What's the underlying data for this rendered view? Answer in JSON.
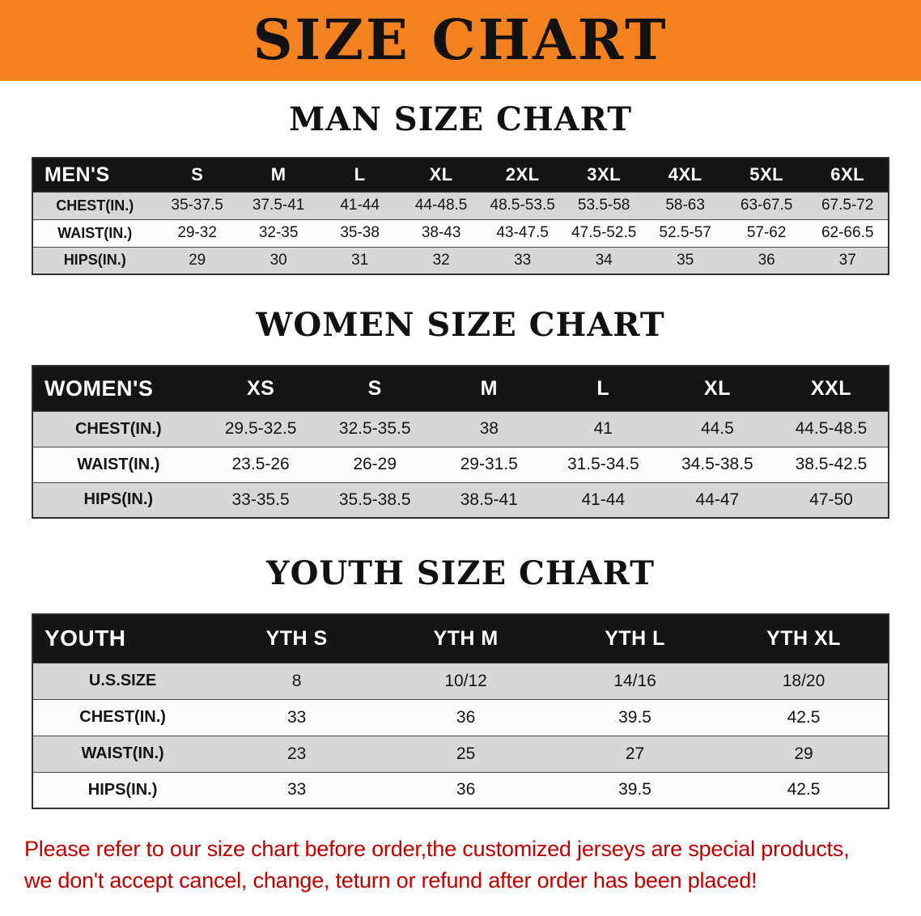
{
  "banner": {
    "title": "SIZE CHART",
    "bg_color": "#F58220",
    "text_color": "#121212"
  },
  "colors": {
    "table_header_bg": "#151515",
    "table_header_text": "#ffffff",
    "row_stripe_gray": "#d7d7d7",
    "row_stripe_white": "#fcfcfc",
    "notice_red": "#C00000"
  },
  "sections": [
    {
      "heading": "MAN SIZE CHART",
      "table": {
        "header": [
          "MEN'S",
          "S",
          "M",
          "L",
          "XL",
          "2XL",
          "3XL",
          "4XL",
          "5XL",
          "6XL"
        ],
        "rows": [
          [
            "CHEST(IN.)",
            "35-37.5",
            "37.5-41",
            "41-44",
            "44-48.5",
            "48.5-53.5",
            "53.5-58",
            "58-63",
            "63-67.5",
            "67.5-72"
          ],
          [
            "WAIST(IN.)",
            "29-32",
            "32-35",
            "35-38",
            "38-43",
            "43-47.5",
            "47.5-52.5",
            "52.5-57",
            "57-62",
            "62-66.5"
          ],
          [
            "HIPS(IN.)",
            "29",
            "30",
            "31",
            "32",
            "33",
            "34",
            "35",
            "36",
            "37"
          ]
        ]
      }
    },
    {
      "heading": "WOMEN SIZE CHART",
      "table": {
        "header": [
          "WOMEN'S",
          "XS",
          "S",
          "M",
          "L",
          "XL",
          "XXL"
        ],
        "rows": [
          [
            "CHEST(IN.)",
            "29.5-32.5",
            "32.5-35.5",
            "38",
            "41",
            "44.5",
            "44.5-48.5"
          ],
          [
            "WAIST(IN.)",
            "23.5-26",
            "26-29",
            "29-31.5",
            "31.5-34.5",
            "34.5-38.5",
            "38.5-42.5"
          ],
          [
            "HIPS(IN.)",
            "33-35.5",
            "35.5-38.5",
            "38.5-41",
            "41-44",
            "44-47",
            "47-50"
          ]
        ]
      }
    },
    {
      "heading": "YOUTH SIZE CHART",
      "table": {
        "header": [
          "YOUTH",
          "YTH S",
          "YTH M",
          "YTH L",
          "YTH XL"
        ],
        "rows": [
          [
            "U.S.SIZE",
            "8",
            "10/12",
            "14/16",
            "18/20"
          ],
          [
            "CHEST(IN.)",
            "33",
            "36",
            "39.5",
            "42.5"
          ],
          [
            "WAIST(IN.)",
            "23",
            "25",
            "27",
            "29"
          ],
          [
            "HIPS(IN.)",
            "33",
            "36",
            "39.5",
            "42.5"
          ]
        ]
      }
    }
  ],
  "footer": {
    "lines": [
      "Please refer to our size chart before order,the customized jerseys are special products,",
      "we don't accept cancel, change, teturn or refund after order has been placed!"
    ]
  }
}
